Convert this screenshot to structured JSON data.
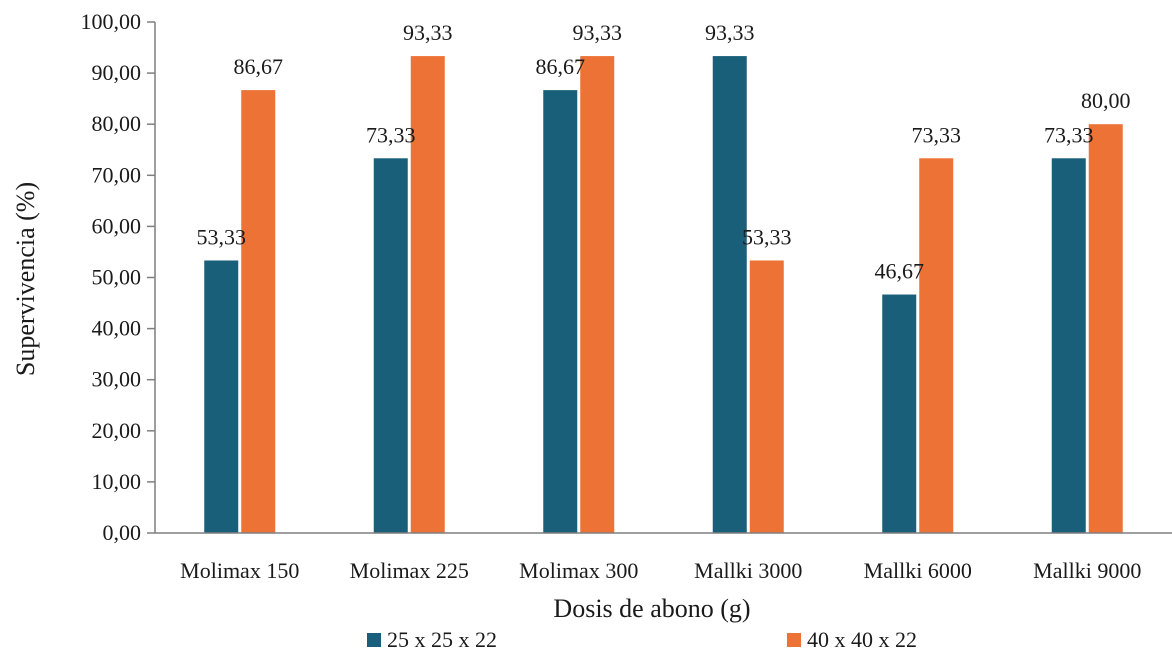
{
  "chart_data": {
    "type": "bar",
    "title": "",
    "xlabel": "Dosis de abono (g)",
    "ylabel": "Supervivencia (%)",
    "ylim": [
      0,
      100
    ],
    "ytick_step": 10,
    "ytick_labels": [
      "0,00",
      "10,00",
      "20,00",
      "30,00",
      "40,00",
      "50,00",
      "60,00",
      "70,00",
      "80,00",
      "90,00",
      "100,00"
    ],
    "grid": false,
    "legend_position": "bottom",
    "categories": [
      "Molimax 150",
      "Molimax 225",
      "Molimax 300",
      "Mallki 3000",
      "Mallki 6000",
      "Mallki 9000"
    ],
    "series": [
      {
        "name": "25 x 25 x 22",
        "color": "#1a5f7a",
        "values": [
          53.33,
          73.33,
          86.67,
          93.33,
          46.67,
          73.33
        ],
        "labels": [
          "53,33",
          "73,33",
          "86,67",
          "93,33",
          "46,67",
          "73,33"
        ]
      },
      {
        "name": "40 x 40 x 22",
        "color": "#ec7235",
        "values": [
          86.67,
          93.33,
          93.33,
          53.33,
          73.33,
          80.0
        ],
        "labels": [
          "86,67",
          "93,33",
          "93,33",
          "53,33",
          "73,33",
          "80,00"
        ]
      }
    ]
  }
}
